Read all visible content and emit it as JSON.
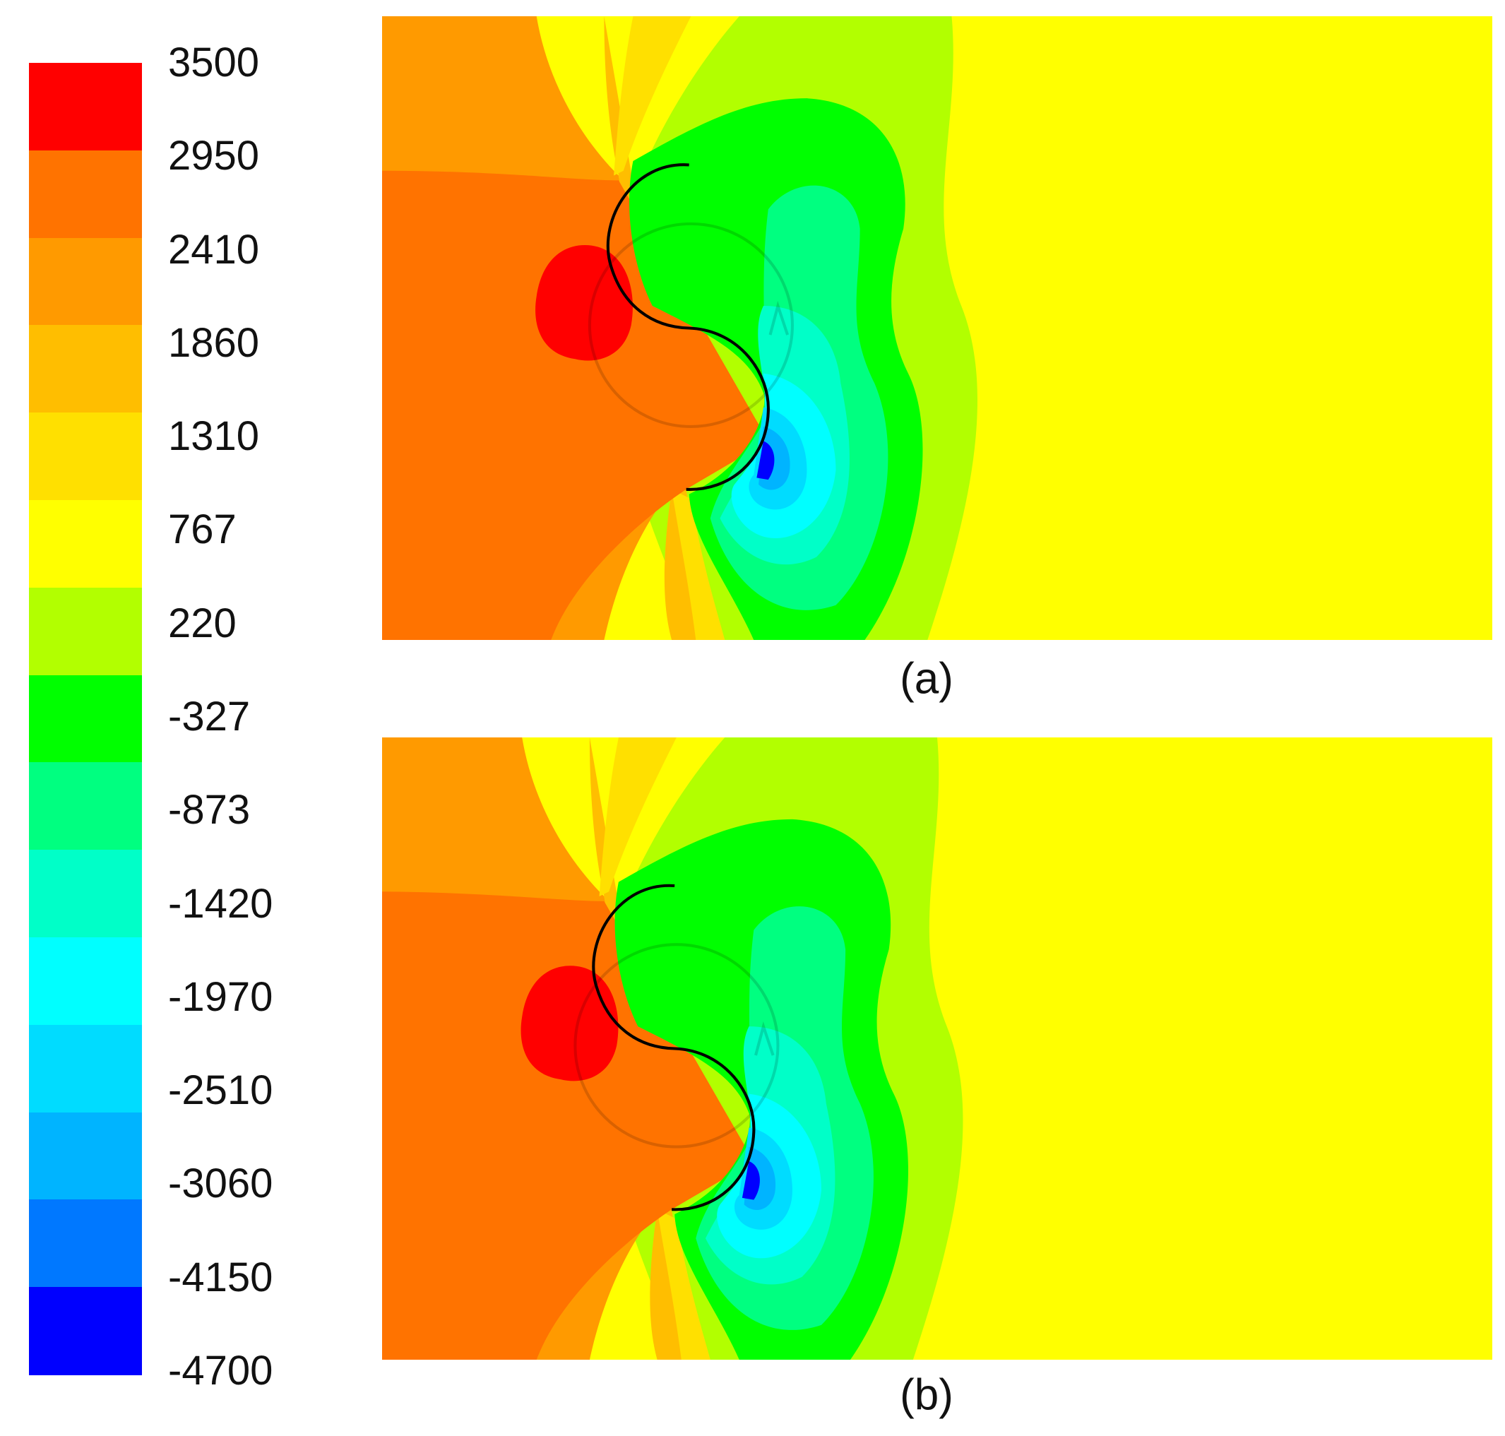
{
  "chart_data": {
    "type": "heatmap",
    "subtype": "filled contour",
    "colorbar": {
      "labels": [
        "3500",
        "2950",
        "2410",
        "1860",
        "1310",
        "767",
        "220",
        "-327",
        "-873",
        "-1420",
        "-1970",
        "-2510",
        "-3060",
        "-4150",
        "-4700"
      ],
      "colors": [
        "#ff0000",
        "#ff7300",
        "#ff9a00",
        "#ffbe00",
        "#ffe000",
        "#ffff00",
        "#b2ff00",
        "#00ff00",
        "#00ff80",
        "#00ffc8",
        "#00ffff",
        "#00dcff",
        "#00b4ff",
        "#0078ff",
        "#0000ff"
      ]
    },
    "panels": [
      {
        "label": "(a)"
      },
      {
        "label": "(b)"
      }
    ]
  }
}
